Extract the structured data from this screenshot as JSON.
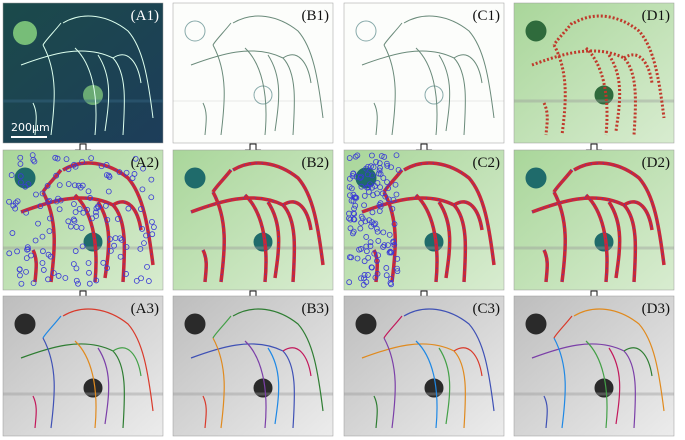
{
  "rows": [
    [
      "(A1)",
      "(B1)",
      "(C1)",
      "(D1)"
    ],
    [
      "(A2)",
      "(B2)",
      "(C2)",
      "(D2)"
    ],
    [
      "(A3)",
      "(B3)",
      "(C3)",
      "(D3)"
    ]
  ],
  "scale_bar": "200μm"
}
